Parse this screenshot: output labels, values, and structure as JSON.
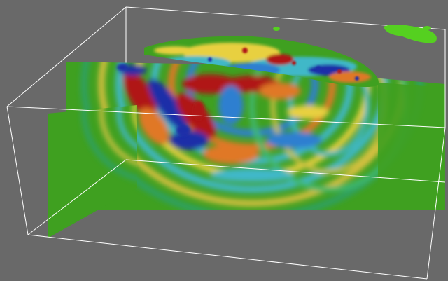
{
  "viewport": {
    "background": "#696969",
    "bbox_line_color": "#ffffff"
  },
  "colormap": {
    "negative_strong": "#1f2ea8",
    "negative": "#2f7fd0",
    "negative_weak": "#3fb8c8",
    "neutral": "#3fa020",
    "positive_weak": "#e8d040",
    "positive": "#e07828",
    "positive_strong": "#b01818"
  }
}
